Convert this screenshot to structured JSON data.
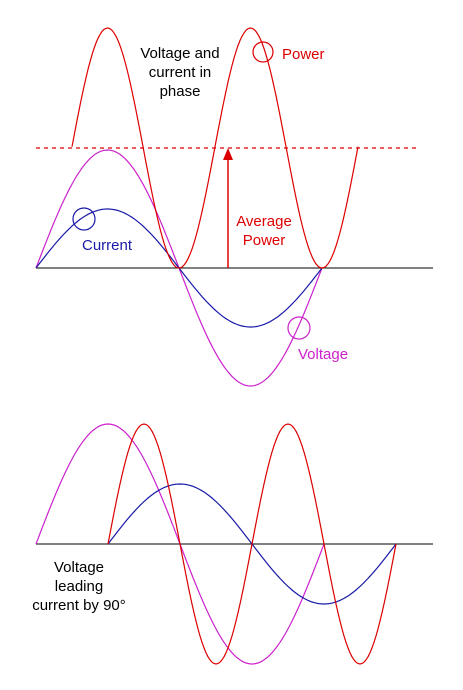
{
  "top_panel": {
    "title_lines": [
      "Voltage and",
      "current in",
      "phase"
    ],
    "power_label": "Power",
    "average_power_lines": [
      "Average",
      "Power"
    ],
    "current_label": "Current",
    "voltage_label": "Voltage"
  },
  "bottom_panel": {
    "caption_lines": [
      "Voltage",
      "leading",
      "current by 90°"
    ]
  },
  "colors": {
    "power": "#dd0000",
    "current": "#1a1aa8",
    "voltage": "#cc22cc",
    "axis": "#000000"
  }
}
